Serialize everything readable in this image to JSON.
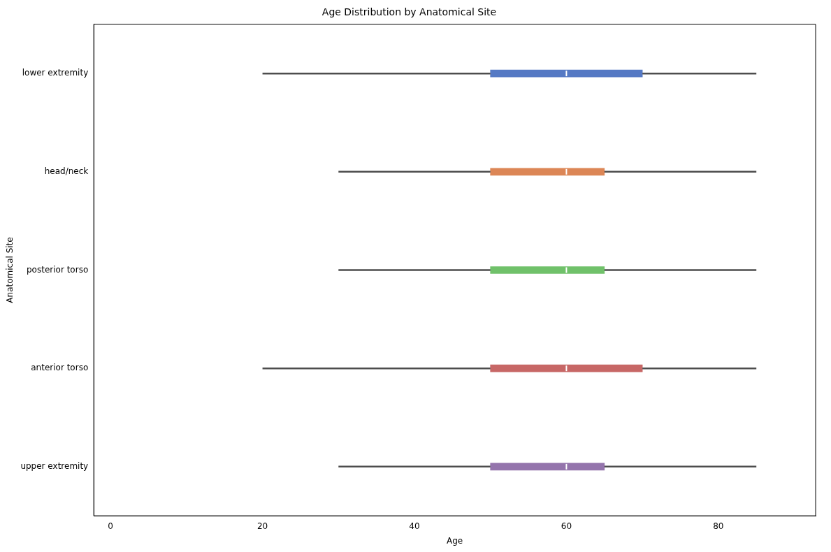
{
  "chart_data": {
    "type": "box",
    "orientation": "horizontal",
    "title": "Age Distribution by Anatomical Site",
    "xlabel": "Age",
    "ylabel": "Anatomical Site",
    "categories": [
      "lower extremity",
      "head/neck",
      "posterior torso",
      "anterior torso",
      "upper extremity"
    ],
    "colors": [
      "#5579c4",
      "#dc8656",
      "#70c16a",
      "#c76766",
      "#9474ac"
    ],
    "boxes": [
      {
        "low": 20,
        "q1": 50,
        "median": 60,
        "q3": 70,
        "high": 85
      },
      {
        "low": 30,
        "q1": 50,
        "median": 60,
        "q3": 65,
        "high": 85
      },
      {
        "low": 30,
        "q1": 50,
        "median": 60,
        "q3": 65,
        "high": 85
      },
      {
        "low": 20,
        "q1": 50,
        "median": 60,
        "q3": 70,
        "high": 85
      },
      {
        "low": 30,
        "q1": 50,
        "median": 60,
        "q3": 65,
        "high": 85
      }
    ],
    "xlim": [
      -2.2,
      92.8
    ],
    "xticks": [
      0,
      20,
      40,
      60,
      80
    ],
    "grid": false,
    "legend": false
  }
}
